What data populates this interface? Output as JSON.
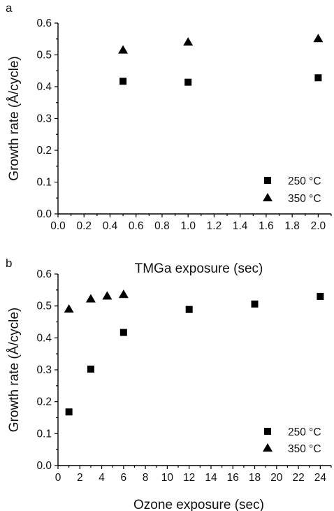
{
  "chart_data": [
    {
      "type": "scatter",
      "panel_label": "a",
      "title": "",
      "xlabel": "TMGa exposure (sec)",
      "ylabel": "Growth rate (Å/cycle)",
      "xlim": [
        0.0,
        2.1
      ],
      "ylim": [
        0.0,
        0.6
      ],
      "xticks": [
        "0.0",
        "0.2",
        "0.4",
        "0.6",
        "0.8",
        "1.0",
        "1.2",
        "1.4",
        "1.6",
        "1.8",
        "2.0"
      ],
      "yticks": [
        "0.0",
        "0.1",
        "0.2",
        "0.3",
        "0.4",
        "0.5",
        "0.6"
      ],
      "grid": false,
      "legend_position": "bottom-right",
      "series": [
        {
          "name": "250 °C",
          "marker": "square",
          "color": "#000000",
          "x": [
            0.5,
            1.0,
            2.0
          ],
          "y": [
            0.417,
            0.414,
            0.428
          ]
        },
        {
          "name": "350 °C",
          "marker": "triangle",
          "color": "#000000",
          "x": [
            0.5,
            1.0,
            2.0
          ],
          "y": [
            0.515,
            0.54,
            0.551
          ]
        }
      ]
    },
    {
      "type": "scatter",
      "panel_label": "b",
      "title": "",
      "xlabel": "Ozone exposure (sec)",
      "ylabel": "Growth rate (Å/cycle)",
      "xlim": [
        0,
        25
      ],
      "ylim": [
        0.0,
        0.6
      ],
      "xticks": [
        "0",
        "2",
        "4",
        "6",
        "8",
        "10",
        "12",
        "14",
        "16",
        "18",
        "20",
        "22",
        "24"
      ],
      "yticks": [
        "0.0",
        "0.1",
        "0.2",
        "0.3",
        "0.4",
        "0.5",
        "0.6"
      ],
      "grid": false,
      "legend_position": "bottom-right",
      "series": [
        {
          "name": "250 °C",
          "marker": "square",
          "color": "#000000",
          "x": [
            1,
            3,
            6,
            12,
            18,
            24
          ],
          "y": [
            0.168,
            0.302,
            0.417,
            0.489,
            0.506,
            0.53
          ]
        },
        {
          "name": "350 °C",
          "marker": "triangle",
          "color": "#000000",
          "x": [
            1,
            3,
            4.5,
            6
          ],
          "y": [
            0.49,
            0.522,
            0.531,
            0.536
          ]
        }
      ]
    }
  ]
}
